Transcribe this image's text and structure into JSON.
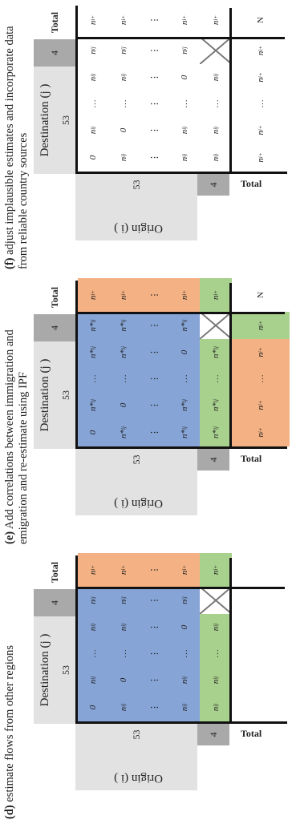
{
  "panels": [
    {
      "id": "d",
      "caption_letter": "(d)",
      "caption_text": " estimate flows from other regions",
      "destination_label": "Destination (j )",
      "origin_label": "Origin (i )",
      "col_headers": [
        "53",
        "4",
        "Total"
      ],
      "row_headers": [
        "53",
        "4",
        "Total"
      ],
      "total_corner": "",
      "colored": true,
      "show_total_row_values": false,
      "rows": [
        [
          "0",
          "n_ij",
          "…",
          "n_ij",
          "n_ij",
          "n_i+"
        ],
        [
          "n_ij",
          "0",
          "…",
          "n_ij",
          "n_ij",
          "n_i+"
        ],
        [
          "⋮",
          "⋮",
          "⋮",
          "⋮",
          "⋮",
          "⋮"
        ],
        [
          "n_ij",
          "n_ij",
          "…",
          "0",
          "n_ij",
          "n_i+"
        ],
        [
          "n_ij",
          "n_ij",
          "…",
          "n_ij",
          "X",
          "n_i+"
        ],
        [
          "",
          "",
          "",
          "",
          "",
          ""
        ]
      ]
    },
    {
      "id": "e",
      "caption_letter": "(e)",
      "caption_text": " Add correlations between immigration and emigration and re-estimate using IPF",
      "destination_label": "Destination (j )",
      "origin_label": "Origin (i )",
      "col_headers": [
        "53",
        "4",
        "Total"
      ],
      "row_headers": [
        "53",
        "4",
        "Total"
      ],
      "total_corner": "N",
      "colored": true,
      "show_total_row_values": true,
      "rows": [
        [
          "0",
          "n*_ij",
          "…",
          "n*_ij",
          "n*_ij",
          "n_i+"
        ],
        [
          "n*_ij",
          "0",
          "…",
          "n*_ij",
          "n*_ij",
          "n_i+"
        ],
        [
          "⋮",
          "⋮",
          "⋮",
          "⋮",
          "⋮",
          "⋮"
        ],
        [
          "n*_ij",
          "n*_ij",
          "…",
          "0",
          "n*_ij",
          "n_i+"
        ],
        [
          "n*_ij",
          "n*_ij",
          "…",
          "n*_ij",
          "X",
          "n_i+"
        ],
        [
          "n_i+",
          "n_i+",
          "…",
          "n_i+",
          "n_i+",
          "N"
        ]
      ]
    },
    {
      "id": "f",
      "caption_letter": "(f)",
      "caption_text": " adjust implausible estimates and incorporate data from reliable country sources",
      "destination_label": "Destination (j )",
      "origin_label": "Origin (i )",
      "col_headers": [
        "53",
        "4",
        "Total"
      ],
      "row_headers": [
        "53",
        "4",
        "Total"
      ],
      "total_corner": "N",
      "colored": false,
      "show_total_row_values": true,
      "rows": [
        [
          "0",
          "n_ij",
          "…",
          "n_ij",
          "n_ij",
          "n_i+"
        ],
        [
          "n_ij",
          "0",
          "…",
          "n_ij",
          "n_ij",
          "n_i+"
        ],
        [
          "⋮",
          "⋮",
          "⋮",
          "⋮",
          "⋮",
          "⋮"
        ],
        [
          "n_ij",
          "n_ij",
          "…",
          "0",
          "n_ij",
          "n_i+"
        ],
        [
          "n_ij",
          "n_ij",
          "…",
          "n_ij",
          "X",
          "n_i+"
        ],
        [
          "n_i+",
          "n_i+",
          "…",
          "n_i+",
          "n_i+",
          "N"
        ]
      ]
    }
  ],
  "colors": {
    "blue": "#86a4d6",
    "green": "#a9d18e",
    "orange": "#f4b183",
    "header_light": "#e2e2e2",
    "header_dark": "#a9a9a9"
  }
}
